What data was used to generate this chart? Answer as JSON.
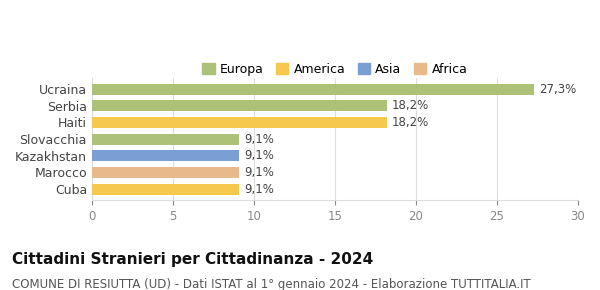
{
  "categories": [
    "Ucraina",
    "Serbia",
    "Haiti",
    "Slovacchia",
    "Kazakhstan",
    "Marocco",
    "Cuba"
  ],
  "values": [
    27.3,
    18.2,
    18.2,
    9.1,
    9.1,
    9.1,
    9.1
  ],
  "labels": [
    "27,3%",
    "18,2%",
    "18,2%",
    "9,1%",
    "9,1%",
    "9,1%",
    "9,1%"
  ],
  "colors": [
    "#adc178",
    "#adc178",
    "#f6c94e",
    "#adc178",
    "#7b9fd4",
    "#e8b98a",
    "#f6c94e"
  ],
  "legend": [
    {
      "label": "Europa",
      "color": "#adc178"
    },
    {
      "label": "America",
      "color": "#f6c94e"
    },
    {
      "label": "Asia",
      "color": "#7b9fd4"
    },
    {
      "label": "Africa",
      "color": "#e8b98a"
    }
  ],
  "xlim": [
    0,
    30
  ],
  "xticks": [
    0,
    5,
    10,
    15,
    20,
    25,
    30
  ],
  "title": "Cittadini Stranieri per Cittadinanza - 2024",
  "subtitle": "COMUNE DI RESIUTTA (UD) - Dati ISTAT al 1° gennaio 2024 - Elaborazione TUTTITALIA.IT",
  "title_fontsize": 11,
  "subtitle_fontsize": 8.5,
  "background_color": "#ffffff",
  "grid_color": "#dddddd"
}
